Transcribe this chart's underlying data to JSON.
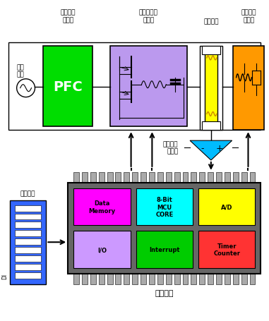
{
  "bg_color": "#ffffff",
  "pfc_color": "#00dd00",
  "inverter_color": "#bb99ee",
  "lamp_color": "#ffff00",
  "suppressor_color": "#ff9900",
  "mcu_body_color": "#666666",
  "mcu_pin_color": "#aaaaaa",
  "data_memory_color": "#ff00ff",
  "mcu_core_color": "#00ffff",
  "ad_color": "#ffff00",
  "io_color": "#cc99ff",
  "interrupt_color": "#00cc00",
  "timer_color": "#ff3333",
  "sensor_color": "#00bbff",
  "dimmer_color": "#3366ff",
  "top_label_1": "主動功因\n調整器",
  "top_label_2": "串聯共振式\n換流器",
  "top_label_3": "熒光燈管",
  "top_label_4": "燾光電流\n消除器",
  "ac_label": "交流\n電源",
  "sensor_label": "燈絲溫度\n量測器",
  "dimmer_label": "調光介面",
  "mcu_label": "微處理器",
  "di_label": "DI",
  "cell_texts": [
    "Data\nMemory",
    "8-Bit\nMCU\nCORE",
    "A/D",
    "I/O",
    "Interrupt",
    "Timer\nCounter"
  ]
}
